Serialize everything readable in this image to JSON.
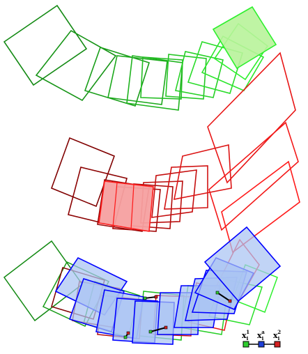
{
  "colors": {
    "green_dark": "#138a13",
    "green_light": "#2ef02e",
    "green_fill": "#b8f39a",
    "red_dark": "#800000",
    "red_light": "#ff1a1a",
    "red_fill": "#f5a0a0",
    "blue_edge": "#0000ff",
    "blue_fill": "#a9c4f3",
    "link": "#000000"
  },
  "legend": {
    "items": [
      {
        "base": "x",
        "sub": "i",
        "sup": "1",
        "color": "#2ecc2e"
      },
      {
        "base": "x",
        "sub": "i",
        "sup": "a",
        "color": "#1f3fd8"
      },
      {
        "base": "x",
        "sub": "i",
        "sup": "2",
        "color": "#d42020"
      }
    ]
  }
}
